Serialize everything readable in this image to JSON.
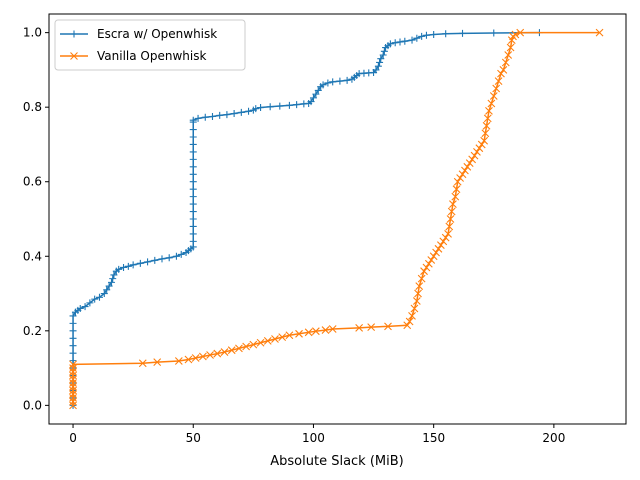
{
  "chart_data": {
    "type": "line",
    "title": "",
    "xlabel": "Absolute Slack (MiB)",
    "ylabel": "",
    "xlim": [
      -10,
      230
    ],
    "ylim": [
      -0.05,
      1.05
    ],
    "x_ticks": [
      0,
      50,
      100,
      150,
      200
    ],
    "y_ticks": [
      0.0,
      0.2,
      0.4,
      0.6,
      0.8,
      1.0
    ],
    "grid": false,
    "legend_position": "top-left",
    "series": [
      {
        "name": "Escra w/ Openwhisk",
        "color": "#1f77b4",
        "marker": "plus",
        "points": [
          [
            0,
            0.0
          ],
          [
            0,
            0.02
          ],
          [
            0,
            0.04
          ],
          [
            0,
            0.06
          ],
          [
            0,
            0.08
          ],
          [
            0,
            0.1
          ],
          [
            0,
            0.12
          ],
          [
            0,
            0.14
          ],
          [
            0,
            0.16
          ],
          [
            0,
            0.18
          ],
          [
            0,
            0.2
          ],
          [
            0,
            0.22
          ],
          [
            0,
            0.24
          ],
          [
            1,
            0.25
          ],
          [
            2,
            0.255
          ],
          [
            3,
            0.26
          ],
          [
            5,
            0.265
          ],
          [
            7,
            0.275
          ],
          [
            9,
            0.285
          ],
          [
            11,
            0.29
          ],
          [
            13,
            0.3
          ],
          [
            14,
            0.31
          ],
          [
            15,
            0.32
          ],
          [
            16,
            0.33
          ],
          [
            16.5,
            0.34
          ],
          [
            17,
            0.35
          ],
          [
            18,
            0.36
          ],
          [
            19,
            0.365
          ],
          [
            21,
            0.37
          ],
          [
            23,
            0.373
          ],
          [
            25,
            0.377
          ],
          [
            28,
            0.381
          ],
          [
            31,
            0.385
          ],
          [
            34,
            0.389
          ],
          [
            37,
            0.393
          ],
          [
            40,
            0.396
          ],
          [
            43,
            0.4
          ],
          [
            45,
            0.405
          ],
          [
            47,
            0.41
          ],
          [
            48,
            0.415
          ],
          [
            49,
            0.42
          ],
          [
            50,
            0.425
          ],
          [
            50,
            0.44
          ],
          [
            50,
            0.46
          ],
          [
            50,
            0.48
          ],
          [
            50,
            0.5
          ],
          [
            50,
            0.52
          ],
          [
            50,
            0.54
          ],
          [
            50,
            0.56
          ],
          [
            50,
            0.58
          ],
          [
            50,
            0.6
          ],
          [
            50,
            0.62
          ],
          [
            50,
            0.64
          ],
          [
            50,
            0.66
          ],
          [
            50,
            0.68
          ],
          [
            50,
            0.7
          ],
          [
            50,
            0.72
          ],
          [
            50,
            0.74
          ],
          [
            50,
            0.76
          ],
          [
            50,
            0.765
          ],
          [
            52,
            0.77
          ],
          [
            55,
            0.773
          ],
          [
            58,
            0.775
          ],
          [
            61,
            0.778
          ],
          [
            64,
            0.78
          ],
          [
            67,
            0.783
          ],
          [
            70,
            0.786
          ],
          [
            73,
            0.789
          ],
          [
            75,
            0.792
          ],
          [
            76,
            0.796
          ],
          [
            78,
            0.799
          ],
          [
            82,
            0.801
          ],
          [
            86,
            0.803
          ],
          [
            90,
            0.805
          ],
          [
            93,
            0.807
          ],
          [
            96,
            0.809
          ],
          [
            98,
            0.81
          ],
          [
            99,
            0.815
          ],
          [
            100,
            0.825
          ],
          [
            101,
            0.835
          ],
          [
            102,
            0.845
          ],
          [
            103,
            0.855
          ],
          [
            104,
            0.86
          ],
          [
            106,
            0.865
          ],
          [
            108,
            0.868
          ],
          [
            111,
            0.87
          ],
          [
            114,
            0.872
          ],
          [
            116,
            0.875
          ],
          [
            117,
            0.88
          ],
          [
            118,
            0.885
          ],
          [
            119,
            0.89
          ],
          [
            121,
            0.891
          ],
          [
            123,
            0.892
          ],
          [
            125,
            0.893
          ],
          [
            126,
            0.9
          ],
          [
            127,
            0.91
          ],
          [
            127.5,
            0.92
          ],
          [
            128,
            0.93
          ],
          [
            129,
            0.94
          ],
          [
            129.5,
            0.95
          ],
          [
            130,
            0.96
          ],
          [
            131,
            0.965
          ],
          [
            132,
            0.97
          ],
          [
            134,
            0.973
          ],
          [
            136,
            0.975
          ],
          [
            138,
            0.977
          ],
          [
            141,
            0.98
          ],
          [
            143,
            0.985
          ],
          [
            145,
            0.99
          ],
          [
            147,
            0.993
          ],
          [
            150,
            0.995
          ],
          [
            155,
            0.997
          ],
          [
            162,
            0.998
          ],
          [
            175,
            0.999
          ],
          [
            194,
            1.0
          ]
        ]
      },
      {
        "name": "Vanilla Openwhisk",
        "color": "#ff7f0e",
        "marker": "x",
        "points": [
          [
            0,
            0.0
          ],
          [
            0,
            0.01
          ],
          [
            0,
            0.02
          ],
          [
            0,
            0.03
          ],
          [
            0,
            0.04
          ],
          [
            0,
            0.05
          ],
          [
            0,
            0.06
          ],
          [
            0,
            0.07
          ],
          [
            0,
            0.08
          ],
          [
            0,
            0.09
          ],
          [
            0,
            0.1
          ],
          [
            0,
            0.11
          ],
          [
            29,
            0.113
          ],
          [
            35,
            0.116
          ],
          [
            44,
            0.119
          ],
          [
            48,
            0.123
          ],
          [
            51,
            0.127
          ],
          [
            54,
            0.131
          ],
          [
            57,
            0.135
          ],
          [
            60,
            0.139
          ],
          [
            63,
            0.143
          ],
          [
            66,
            0.148
          ],
          [
            69,
            0.153
          ],
          [
            72,
            0.158
          ],
          [
            75,
            0.163
          ],
          [
            78,
            0.168
          ],
          [
            81,
            0.173
          ],
          [
            84,
            0.178
          ],
          [
            87,
            0.183
          ],
          [
            90,
            0.188
          ],
          [
            94,
            0.192
          ],
          [
            98,
            0.196
          ],
          [
            101,
            0.199
          ],
          [
            105,
            0.202
          ],
          [
            108,
            0.205
          ],
          [
            119,
            0.208
          ],
          [
            124,
            0.21
          ],
          [
            131,
            0.212
          ],
          [
            139,
            0.215
          ],
          [
            140,
            0.225
          ],
          [
            141,
            0.24
          ],
          [
            142,
            0.26
          ],
          [
            143,
            0.28
          ],
          [
            143.5,
            0.3
          ],
          [
            144,
            0.32
          ],
          [
            145,
            0.34
          ],
          [
            146,
            0.36
          ],
          [
            147,
            0.37
          ],
          [
            148,
            0.38
          ],
          [
            149,
            0.39
          ],
          [
            150,
            0.4
          ],
          [
            151,
            0.41
          ],
          [
            152,
            0.42
          ],
          [
            153,
            0.43
          ],
          [
            154,
            0.44
          ],
          [
            155,
            0.45
          ],
          [
            156,
            0.46
          ],
          [
            156.5,
            0.48
          ],
          [
            157,
            0.5
          ],
          [
            157.5,
            0.52
          ],
          [
            158,
            0.54
          ],
          [
            159,
            0.56
          ],
          [
            159.5,
            0.58
          ],
          [
            160,
            0.6
          ],
          [
            161,
            0.61
          ],
          [
            162,
            0.62
          ],
          [
            163,
            0.63
          ],
          [
            164,
            0.64
          ],
          [
            165,
            0.65
          ],
          [
            166,
            0.66
          ],
          [
            167,
            0.67
          ],
          [
            168,
            0.68
          ],
          [
            169,
            0.69
          ],
          [
            170,
            0.7
          ],
          [
            171,
            0.71
          ],
          [
            171.5,
            0.73
          ],
          [
            172,
            0.75
          ],
          [
            172.5,
            0.77
          ],
          [
            173,
            0.79
          ],
          [
            174,
            0.81
          ],
          [
            175,
            0.83
          ],
          [
            176,
            0.85
          ],
          [
            177,
            0.87
          ],
          [
            178,
            0.89
          ],
          [
            179,
            0.9
          ],
          [
            180,
            0.92
          ],
          [
            181,
            0.94
          ],
          [
            182,
            0.96
          ],
          [
            182.5,
            0.98
          ],
          [
            183,
            0.99
          ],
          [
            184,
            0.995
          ],
          [
            186,
            1.0
          ],
          [
            219,
            1.0
          ]
        ]
      }
    ]
  }
}
